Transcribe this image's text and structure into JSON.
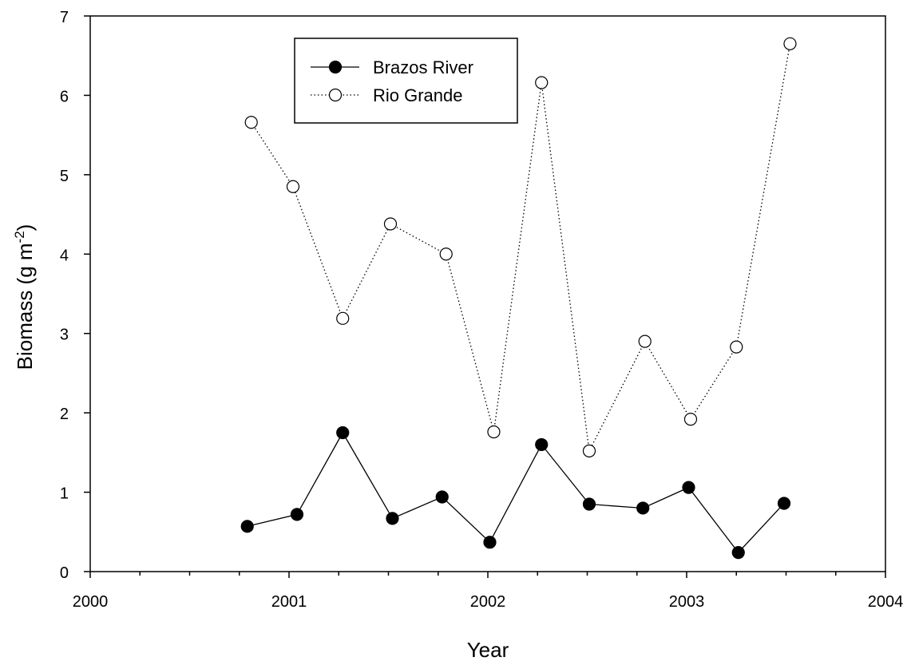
{
  "chart_data": {
    "type": "line",
    "xlabel": "Year",
    "ylabel": "Biomass (g m",
    "ylabel_superscript": "-2",
    "ylabel_suffix": ")",
    "xlim": [
      2000,
      2004
    ],
    "ylim": [
      0,
      7
    ],
    "xticks": [
      2000,
      2001,
      2002,
      2003,
      2004
    ],
    "yticks": [
      0,
      1,
      2,
      3,
      4,
      5,
      6,
      7
    ],
    "x_minor_step": 0.25,
    "grid": false,
    "legend_placement": "top-left",
    "series": [
      {
        "name": "Brazos River",
        "marker": "filled-circle",
        "line_style": "solid",
        "color": "#000000",
        "x": [
          2000.79,
          2001.04,
          2001.27,
          2001.52,
          2001.77,
          2002.01,
          2002.27,
          2002.51,
          2002.78,
          2003.01,
          2003.26,
          2003.49
        ],
        "y": [
          0.57,
          0.72,
          1.75,
          0.67,
          0.94,
          0.37,
          1.6,
          0.85,
          0.8,
          1.06,
          0.24,
          0.86
        ]
      },
      {
        "name": "Rio Grande",
        "marker": "open-circle",
        "line_style": "dotted",
        "color": "#000000",
        "x": [
          2000.81,
          2001.02,
          2001.27,
          2001.51,
          2001.79,
          2002.03,
          2002.27,
          2002.51,
          2002.79,
          2003.02,
          2003.25,
          2003.52
        ],
        "y": [
          5.66,
          4.85,
          3.19,
          4.38,
          4.0,
          1.76,
          6.16,
          1.52,
          2.9,
          1.92,
          2.83,
          6.65
        ]
      }
    ]
  }
}
